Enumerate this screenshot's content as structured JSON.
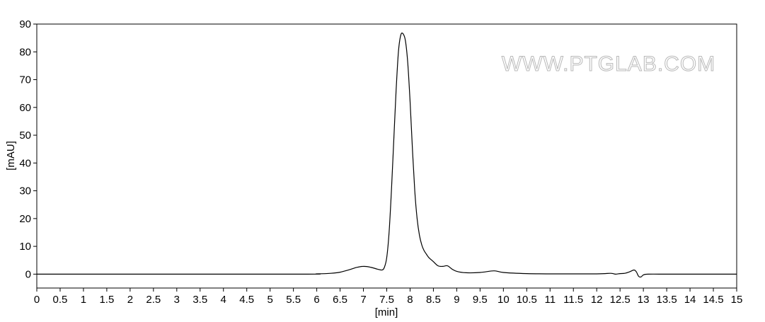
{
  "chart_data": {
    "type": "line",
    "xlabel": "[min]",
    "ylabel": "[mAU]",
    "xlim": [
      0,
      15
    ],
    "ylim": [
      -5,
      90
    ],
    "xticks": [
      "0",
      "0.5",
      "1",
      "1.5",
      "2",
      "2.5",
      "3",
      "3.5",
      "4",
      "4.5",
      "5",
      "5.5",
      "6",
      "6.5",
      "7",
      "7.5",
      "8",
      "8.5",
      "9",
      "9.5",
      "10",
      "10.5",
      "11",
      "11.5",
      "12",
      "12.5",
      "13",
      "13.5",
      "14",
      "14.5",
      "15"
    ],
    "yticks": [
      "0",
      "10",
      "20",
      "30",
      "40",
      "50",
      "60",
      "70",
      "80",
      "90"
    ],
    "grid": false,
    "series": [
      {
        "x": [
          0,
          5.5,
          6.0,
          6.3,
          6.5,
          6.7,
          6.85,
          7.0,
          7.15,
          7.3,
          7.4,
          7.45,
          7.5,
          7.55,
          7.6,
          7.65,
          7.7,
          7.75,
          7.8,
          7.85,
          7.9,
          7.95,
          8.0,
          8.05,
          8.1,
          8.15,
          8.2,
          8.25,
          8.3,
          8.35,
          8.4,
          8.5,
          8.6,
          8.7,
          8.8,
          8.9,
          9.0,
          9.2,
          9.5,
          9.8,
          10.0,
          10.5,
          11.0,
          12.0,
          12.3,
          12.4,
          12.5,
          12.6,
          12.7,
          12.8,
          12.85,
          12.9,
          12.95,
          13.0,
          13.1,
          13.5,
          14.0,
          15.0
        ],
        "y": [
          0,
          0,
          0.1,
          0.3,
          0.7,
          1.6,
          2.4,
          2.8,
          2.5,
          1.8,
          1.5,
          2.5,
          6.0,
          15.0,
          30.0,
          48.0,
          66.0,
          80.0,
          86.0,
          86.5,
          84.0,
          76.0,
          62.0,
          45.0,
          30.0,
          20.0,
          14.0,
          10.5,
          8.5,
          7.2,
          6.0,
          4.5,
          3.0,
          2.8,
          3.0,
          1.8,
          1.0,
          0.5,
          0.6,
          1.2,
          0.6,
          0.2,
          0.1,
          0.1,
          0.3,
          0.0,
          0.2,
          0.3,
          0.8,
          1.5,
          0.8,
          -0.8,
          -1.0,
          -0.3,
          0.0,
          0.0,
          0.0,
          0.0
        ]
      }
    ]
  },
  "watermark": "WWW.PTGLAB.COM",
  "colors": {
    "line": "#000000",
    "axis": "#000000"
  }
}
